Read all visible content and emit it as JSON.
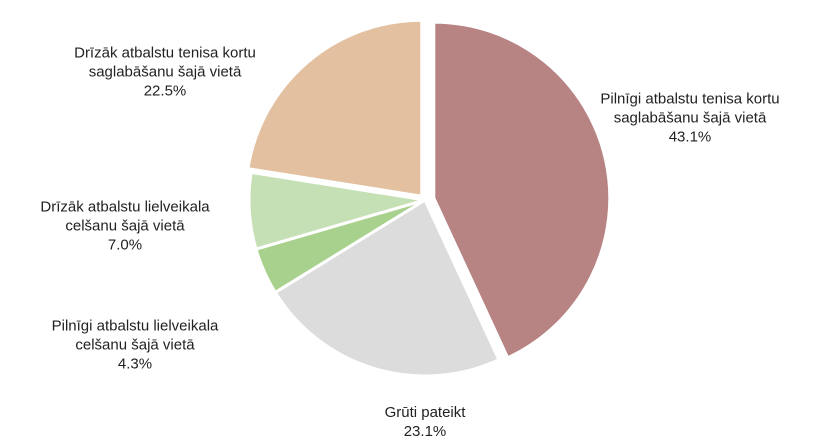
{
  "chart_data": {
    "type": "pie",
    "categories": [
      "Pilnīgi atbalstu tenisa kortu saglabāšanu šajā vietā",
      "Grūti pateikt",
      "Pilnīgi atbalstu lielveikala celšanu šajā vietā",
      "Drīzāk atbalstu lielveikala celšanu šajā vietā",
      "Drīzāk atbalstu tenisa kortu saglabāšanu šajā vietā"
    ],
    "values": [
      43.1,
      23.1,
      4.3,
      7.0,
      22.5
    ],
    "value_labels": [
      "43.1%",
      "23.1%",
      "4.3%",
      "7.0%",
      "22.5%"
    ],
    "colors": [
      "#b78383",
      "#dcdcdc",
      "#a9d18e",
      "#c5e0b4",
      "#e2c0a0"
    ]
  }
}
